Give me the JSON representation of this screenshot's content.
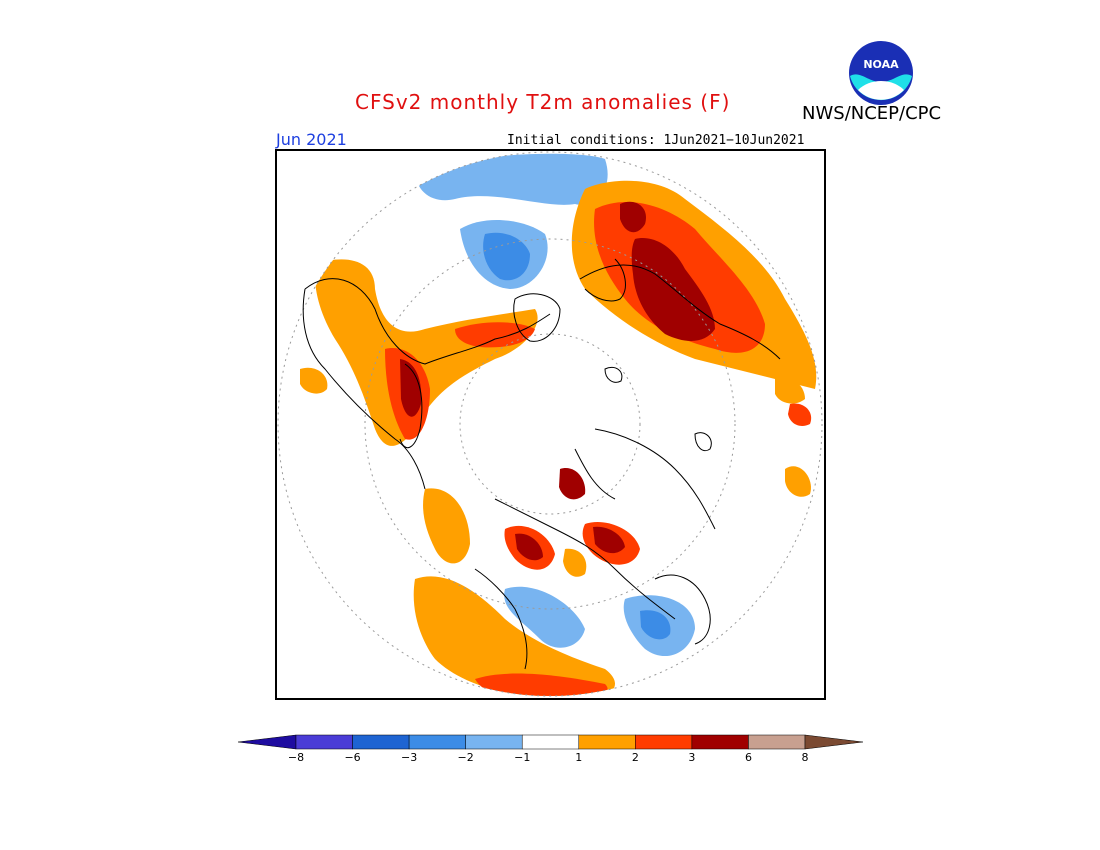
{
  "title": "CFSv2 monthly T2m anomalies (F)",
  "agency": "NWS/NCEP/CPC",
  "logo_text": "NOAA",
  "valid_month": "Jun 2021",
  "initial_conditions": "Initial conditions: 1Jun2021−10Jun2021",
  "colorbar": {
    "colors": [
      "#1e0ca0",
      "#4a3cd6",
      "#1e64d2",
      "#3c8ce6",
      "#78b4f0",
      "#ffffff",
      "#ffa000",
      "#ff3c00",
      "#a00000",
      "#c8a090",
      "#7b4a32"
    ],
    "tick_labels": [
      "−8",
      "−6",
      "−3",
      "−2",
      "−1",
      "1",
      "2",
      "3",
      "6",
      "8"
    ]
  },
  "colors": {
    "title": "#e01010",
    "month": "#1d3fe0",
    "warm1": "#ffa000",
    "warm2": "#ff3c00",
    "warm3": "#a00000",
    "cool1": "#78b4f0",
    "cool2": "#3c8ce6",
    "cool3": "#1e64d2"
  }
}
